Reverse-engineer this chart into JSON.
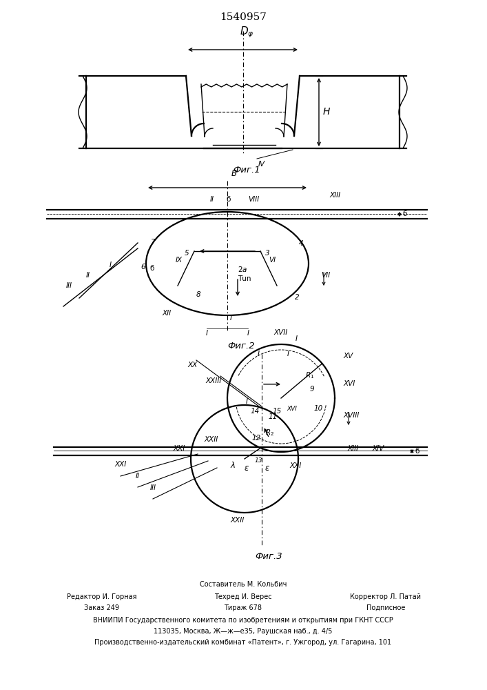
{
  "title": "1540957",
  "fig1_caption": "Фиг.1",
  "fig2_caption": "Фиг.2",
  "fig3_caption": "Фиг.3",
  "footer_c0r0": "Составитель М. Кольбич",
  "footer_c0r1": "Редактор И. Горная",
  "footer_c1r1": "Техред И. Верес",
  "footer_c2r1": "Корректор Л. Патай",
  "footer_c0r2": "Заказ 249",
  "footer_c1r2": "Тираж 678",
  "footer_c2r2": "Подписное",
  "footer_v1": "ВНИИПИ Государственного комитета по изобретениям и открытиям при ГКНТ СССР",
  "footer_v2": "113035, Москва, Ж—ж—е35, Раушская наб., д. 4/5",
  "footer_v3": "Производственно-издательский комбинат «Патент», г. Ужгород, ул. Гагарина, 101",
  "color": "#000000",
  "bg": "#ffffff"
}
